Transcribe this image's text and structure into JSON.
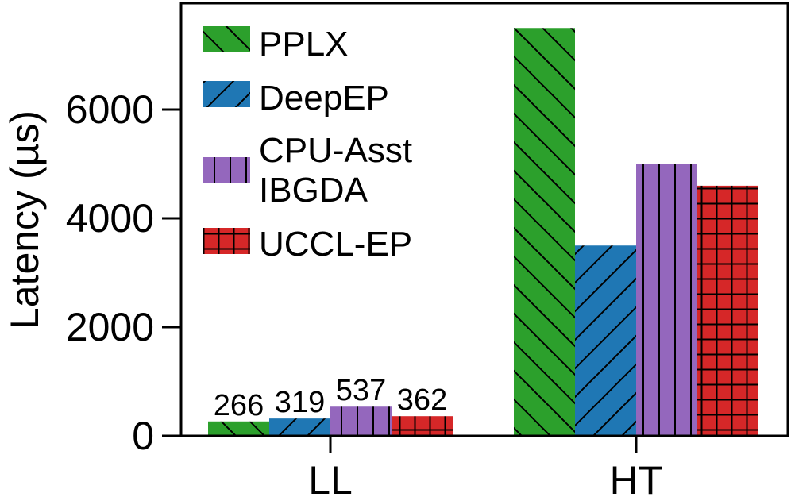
{
  "chart_data": {
    "type": "bar",
    "title": "",
    "xlabel": "",
    "ylabel": "Latency (µs)",
    "categories": [
      "LL",
      "HT"
    ],
    "ylim": [
      0,
      7800
    ],
    "yticks": [
      0,
      2000,
      4000,
      6000
    ],
    "grid": false,
    "legend_position": "top-left",
    "series": [
      {
        "name": "PPLX",
        "values": [
          266,
          7500
        ],
        "color": "#2ca02c",
        "hatch": "backslash"
      },
      {
        "name": "DeepEP",
        "values": [
          319,
          3500
        ],
        "color": "#1f77b4",
        "hatch": "slash"
      },
      {
        "name": "CPU-Asst IBGDA",
        "values": [
          537,
          5000
        ],
        "color": "#9467bd",
        "hatch": "vertical"
      },
      {
        "name": "UCCL-EP",
        "values": [
          362,
          4600
        ],
        "color": "#d62728",
        "hatch": "grid"
      }
    ],
    "data_labels": [
      {
        "category": "LL",
        "labels": [
          "266",
          "319",
          "537",
          "362"
        ]
      }
    ]
  }
}
